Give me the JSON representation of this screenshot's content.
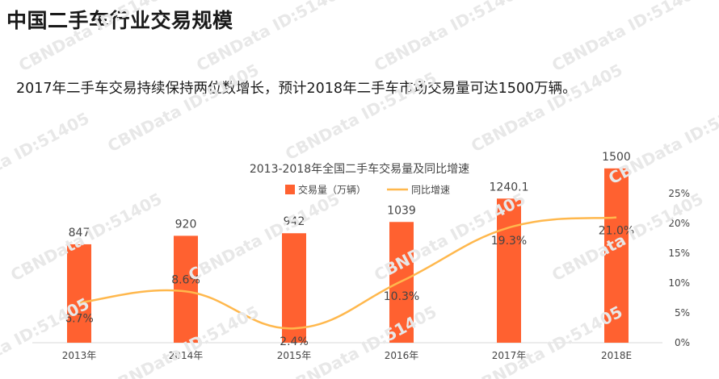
{
  "page": {
    "title": "中国二手车行业交易规模",
    "summary": "2017年二手车交易持续保持两位数增长，预计2018年二手车市场交易量可达1500万辆。",
    "watermark": "CBNData ID:51405"
  },
  "colors": {
    "bar": "#FF6130",
    "line": "#FFB84D",
    "watermark": "#e8e8e8",
    "axis": "#d9d9d9",
    "text": "#444444"
  },
  "chart_data": {
    "type": "bar",
    "title": "2013-2018年全国二手车交易量及同比增速",
    "categories": [
      "2013年",
      "2014年",
      "2015年",
      "2016年",
      "2017年",
      "2018E"
    ],
    "series": [
      {
        "name": "交易量（万辆）",
        "type": "bar",
        "values": [
          847,
          920,
          942,
          1039,
          1240.1,
          1500
        ],
        "labels": [
          "847",
          "920",
          "942",
          "1039",
          "1240.1",
          "1500"
        ]
      },
      {
        "name": "同比增速",
        "type": "line",
        "axis": "right",
        "values": [
          6.7,
          8.6,
          2.4,
          10.3,
          19.3,
          21.0
        ],
        "labels": [
          "6.7%",
          "8.6%",
          "2.4%",
          "10.3%",
          "19.3%",
          "21.0%"
        ]
      }
    ],
    "y_right_ticks": [
      "0%",
      "5%",
      "10%",
      "15%",
      "20%",
      "25%"
    ],
    "y_right_range": [
      0,
      25
    ],
    "y_left_range": [
      0,
      1700
    ],
    "legend": "top",
    "grid": false
  }
}
